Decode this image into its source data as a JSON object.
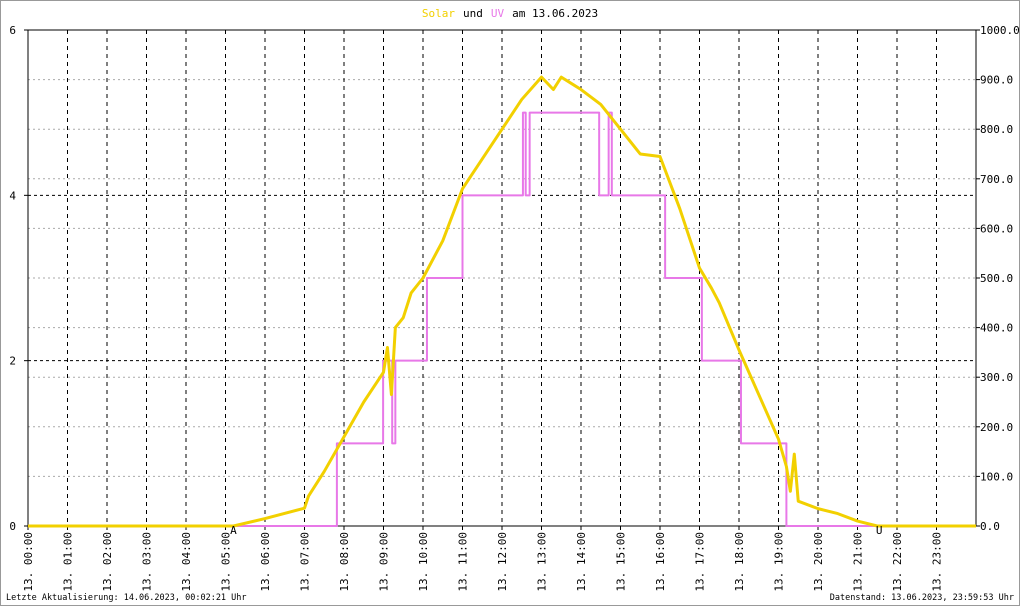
{
  "chart_data": {
    "type": "line",
    "title_join": "und",
    "title_suffix": "am 13.06.2023",
    "xlim": [
      0,
      24
    ],
    "xticks": [
      {
        "value": 0,
        "label": "13. 00:00"
      },
      {
        "value": 1,
        "label": "13. 01:00"
      },
      {
        "value": 2,
        "label": "13. 02:00"
      },
      {
        "value": 3,
        "label": "13. 03:00"
      },
      {
        "value": 4,
        "label": "13. 04:00"
      },
      {
        "value": 5,
        "label": "13. 05:00"
      },
      {
        "value": 6,
        "label": "13. 06:00"
      },
      {
        "value": 7,
        "label": "13. 07:00"
      },
      {
        "value": 8,
        "label": "13. 08:00"
      },
      {
        "value": 9,
        "label": "13. 09:00"
      },
      {
        "value": 10,
        "label": "13. 10:00"
      },
      {
        "value": 11,
        "label": "13. 11:00"
      },
      {
        "value": 12,
        "label": "13. 12:00"
      },
      {
        "value": 13,
        "label": "13. 13:00"
      },
      {
        "value": 14,
        "label": "13. 14:00"
      },
      {
        "value": 15,
        "label": "13. 15:00"
      },
      {
        "value": 16,
        "label": "13. 16:00"
      },
      {
        "value": 17,
        "label": "13. 17:00"
      },
      {
        "value": 18,
        "label": "13. 18:00"
      },
      {
        "value": 19,
        "label": "13. 19:00"
      },
      {
        "value": 20,
        "label": "13. 20:00"
      },
      {
        "value": 21,
        "label": "13. 21:00"
      },
      {
        "value": 22,
        "label": "13. 22:00"
      },
      {
        "value": 23,
        "label": "13. 23:00"
      }
    ],
    "ylim": [
      0,
      6
    ],
    "yticks": [
      0,
      2,
      4,
      6
    ],
    "y2lim": [
      0,
      1000
    ],
    "y2ticks": [
      {
        "value": 0,
        "label": "0.0"
      },
      {
        "value": 100,
        "label": "100.0"
      },
      {
        "value": 200,
        "label": "200.0"
      },
      {
        "value": 300,
        "label": "300.0"
      },
      {
        "value": 400,
        "label": "400.0"
      },
      {
        "value": 500,
        "label": "500.0"
      },
      {
        "value": 600,
        "label": "600.0"
      },
      {
        "value": 700,
        "label": "700.0"
      },
      {
        "value": 800,
        "label": "800.0"
      },
      {
        "value": 900,
        "label": "900.0"
      },
      {
        "value": 1000,
        "label": "1000.0"
      }
    ],
    "grid": true,
    "series": [
      {
        "name": "Solar",
        "color": "#f2d000",
        "axis": "y2",
        "x": [
          0,
          5.2,
          6,
          7,
          7.1,
          7.5,
          8,
          8.5,
          9,
          9.1,
          9.2,
          9.3,
          9.5,
          9.7,
          10,
          10.5,
          11,
          11.5,
          12,
          12.5,
          13,
          13.3,
          13.5,
          13.8,
          14,
          14.5,
          15,
          15.5,
          16,
          16.5,
          17,
          17.3,
          17.5,
          18,
          18.5,
          19,
          19.2,
          19.3,
          19.4,
          19.5,
          20,
          20.5,
          21,
          21.5,
          24
        ],
        "values": [
          0,
          0,
          15,
          36,
          60,
          110,
          180,
          250,
          310,
          360,
          265,
          400,
          420,
          470,
          500,
          575,
          680,
          740,
          800,
          860,
          905,
          880,
          905,
          890,
          880,
          850,
          800,
          750,
          745,
          640,
          520,
          480,
          450,
          355,
          265,
          175,
          120,
          70,
          145,
          50,
          35,
          25,
          10,
          0,
          0
        ]
      },
      {
        "name": "UV",
        "color": "#e878e8",
        "axis": "y",
        "x": [
          0,
          7.82,
          7.82,
          8.99,
          8.99,
          9.22,
          9.22,
          9.3,
          9.3,
          10.1,
          10.1,
          11,
          11,
          12.53,
          12.53,
          12.6,
          12.6,
          12.7,
          12.7,
          14.46,
          14.46,
          14.7,
          14.7,
          14.78,
          14.78,
          16.13,
          16.13,
          17.06,
          17.06,
          18.05,
          18.05,
          19.2,
          19.2,
          24
        ],
        "values": [
          0,
          0,
          1,
          1,
          2,
          2,
          1,
          1,
          2,
          2,
          3,
          3,
          4,
          4,
          5,
          5,
          4,
          4,
          5,
          5,
          4,
          4,
          5,
          5,
          4,
          4,
          3,
          3,
          2,
          2,
          1,
          1,
          0,
          0
        ]
      }
    ],
    "annotations": [
      {
        "text": "A",
        "x": 5.2,
        "color": "#d00000"
      },
      {
        "text": "U",
        "x": 21.55,
        "color": "#d00000"
      }
    ],
    "footer_left": "Letzte Aktualisierung: 14.06.2023, 00:02:21 Uhr",
    "footer_right": "Datenstand: 13.06.2023, 23:59:53 Uhr"
  }
}
